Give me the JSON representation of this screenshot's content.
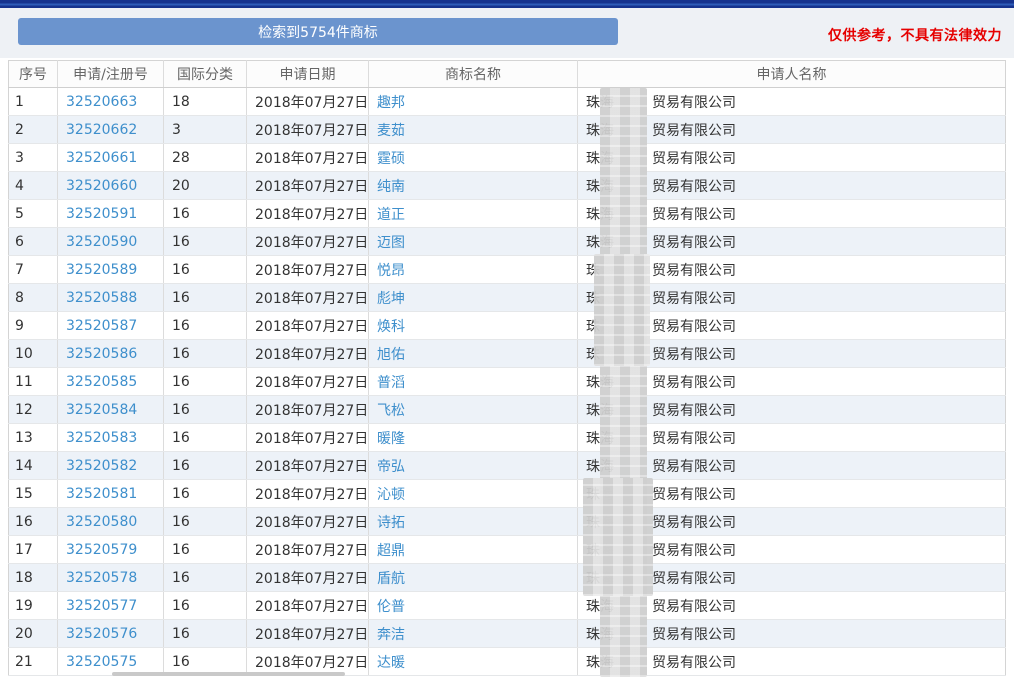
{
  "summary_banner": {
    "label": "检索到5754件商标"
  },
  "disclaimer": {
    "text": "仅供参考，不具有法律效力"
  },
  "table": {
    "headers": [
      "序号",
      "申请/注册号",
      "国际分类",
      "申请日期",
      "商标名称",
      "申请人名称"
    ],
    "applicant_prefix": "珠海",
    "applicant_suffix": "贸易有限公司",
    "rows": [
      {
        "index": "1",
        "app_no": "32520663",
        "intl_class": "18",
        "app_date": "2018年07月27日",
        "mark_name": "趣邦"
      },
      {
        "index": "2",
        "app_no": "32520662",
        "intl_class": "3",
        "app_date": "2018年07月27日",
        "mark_name": "麦茹"
      },
      {
        "index": "3",
        "app_no": "32520661",
        "intl_class": "28",
        "app_date": "2018年07月27日",
        "mark_name": "霆硕"
      },
      {
        "index": "4",
        "app_no": "32520660",
        "intl_class": "20",
        "app_date": "2018年07月27日",
        "mark_name": "纯南"
      },
      {
        "index": "5",
        "app_no": "32520591",
        "intl_class": "16",
        "app_date": "2018年07月27日",
        "mark_name": "道正"
      },
      {
        "index": "6",
        "app_no": "32520590",
        "intl_class": "16",
        "app_date": "2018年07月27日",
        "mark_name": "迈图"
      },
      {
        "index": "7",
        "app_no": "32520589",
        "intl_class": "16",
        "app_date": "2018年07月27日",
        "mark_name": "悦昂"
      },
      {
        "index": "8",
        "app_no": "32520588",
        "intl_class": "16",
        "app_date": "2018年07月27日",
        "mark_name": "彪坤"
      },
      {
        "index": "9",
        "app_no": "32520587",
        "intl_class": "16",
        "app_date": "2018年07月27日",
        "mark_name": "焕科"
      },
      {
        "index": "10",
        "app_no": "32520586",
        "intl_class": "16",
        "app_date": "2018年07月27日",
        "mark_name": "旭佑"
      },
      {
        "index": "11",
        "app_no": "32520585",
        "intl_class": "16",
        "app_date": "2018年07月27日",
        "mark_name": "普滔"
      },
      {
        "index": "12",
        "app_no": "32520584",
        "intl_class": "16",
        "app_date": "2018年07月27日",
        "mark_name": "飞松"
      },
      {
        "index": "13",
        "app_no": "32520583",
        "intl_class": "16",
        "app_date": "2018年07月27日",
        "mark_name": "暖隆"
      },
      {
        "index": "14",
        "app_no": "32520582",
        "intl_class": "16",
        "app_date": "2018年07月27日",
        "mark_name": "帝弘"
      },
      {
        "index": "15",
        "app_no": "32520581",
        "intl_class": "16",
        "app_date": "2018年07月27日",
        "mark_name": "沁顿"
      },
      {
        "index": "16",
        "app_no": "32520580",
        "intl_class": "16",
        "app_date": "2018年07月27日",
        "mark_name": "诗拓"
      },
      {
        "index": "17",
        "app_no": "32520579",
        "intl_class": "16",
        "app_date": "2018年07月27日",
        "mark_name": "超鼎"
      },
      {
        "index": "18",
        "app_no": "32520578",
        "intl_class": "16",
        "app_date": "2018年07月27日",
        "mark_name": "盾航"
      },
      {
        "index": "19",
        "app_no": "32520577",
        "intl_class": "16",
        "app_date": "2018年07月27日",
        "mark_name": "伦普"
      },
      {
        "index": "20",
        "app_no": "32520576",
        "intl_class": "16",
        "app_date": "2018年07月27日",
        "mark_name": "奔洁"
      },
      {
        "index": "21",
        "app_no": "32520575",
        "intl_class": "16",
        "app_date": "2018年07月27日",
        "mark_name": "达暖"
      }
    ]
  },
  "colors": {
    "banner_blue": "#6b94ce",
    "link_blue": "#3e8fcc",
    "navbar_navy": "#16338e",
    "row_alt": "#edf2f8",
    "disclaimer_red": "#e60000"
  }
}
